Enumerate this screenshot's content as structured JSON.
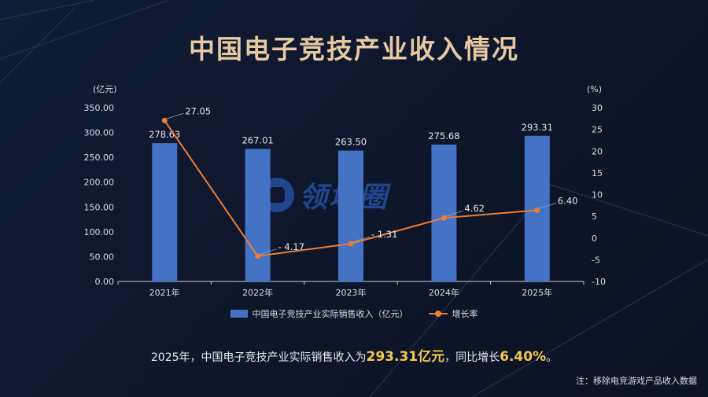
{
  "title": "中国电子竞技产业收入情况",
  "chart_data": {
    "type": "bar",
    "categories": [
      "2021年",
      "2022年",
      "2023年",
      "2024年",
      "2025年"
    ],
    "series": [
      {
        "name": "中国电子竞技产业实际销售收入（亿元）",
        "type": "bar",
        "axis": "left",
        "values": [
          278.63,
          267.01,
          263.5,
          275.68,
          293.31
        ],
        "labels": [
          "278.63",
          "267.01",
          "263.50",
          "275.68",
          "293.31"
        ],
        "color": "#4472c4"
      },
      {
        "name": "增长率",
        "type": "line",
        "axis": "right",
        "values": [
          27.05,
          -4.17,
          -1.31,
          4.62,
          6.4
        ],
        "labels": [
          "27.05",
          "- 4.17",
          "- 1.31",
          "4.62",
          "6.40"
        ],
        "color": "#ed7d31"
      }
    ],
    "y_left": {
      "unit": "(亿元)",
      "range": [
        0,
        350
      ],
      "ticks": [
        "0.00",
        "50.00",
        "100.00",
        "150.00",
        "200.00",
        "250.00",
        "300.00",
        "350.00"
      ]
    },
    "y_right": {
      "unit": "(%)",
      "range": [
        -10,
        30
      ],
      "ticks": [
        "-10",
        "-5",
        "0",
        "5",
        "10",
        "15",
        "20",
        "25",
        "30"
      ]
    },
    "grid": false,
    "legend_position": "bottom"
  },
  "summary": {
    "prefix": "2025年，中国电子竞技产业实际销售收入为",
    "value": "293.31亿元",
    "middle": "，同比增长",
    "rate": "6.40%",
    "suffix": "。"
  },
  "note": "注：移除电竞游戏产品收入数据",
  "watermark": "领域圈",
  "colors": {
    "bar": "#4472c4",
    "line": "#ed7d31",
    "title": "#e6c9a0",
    "highlight": "#f5c84c"
  }
}
